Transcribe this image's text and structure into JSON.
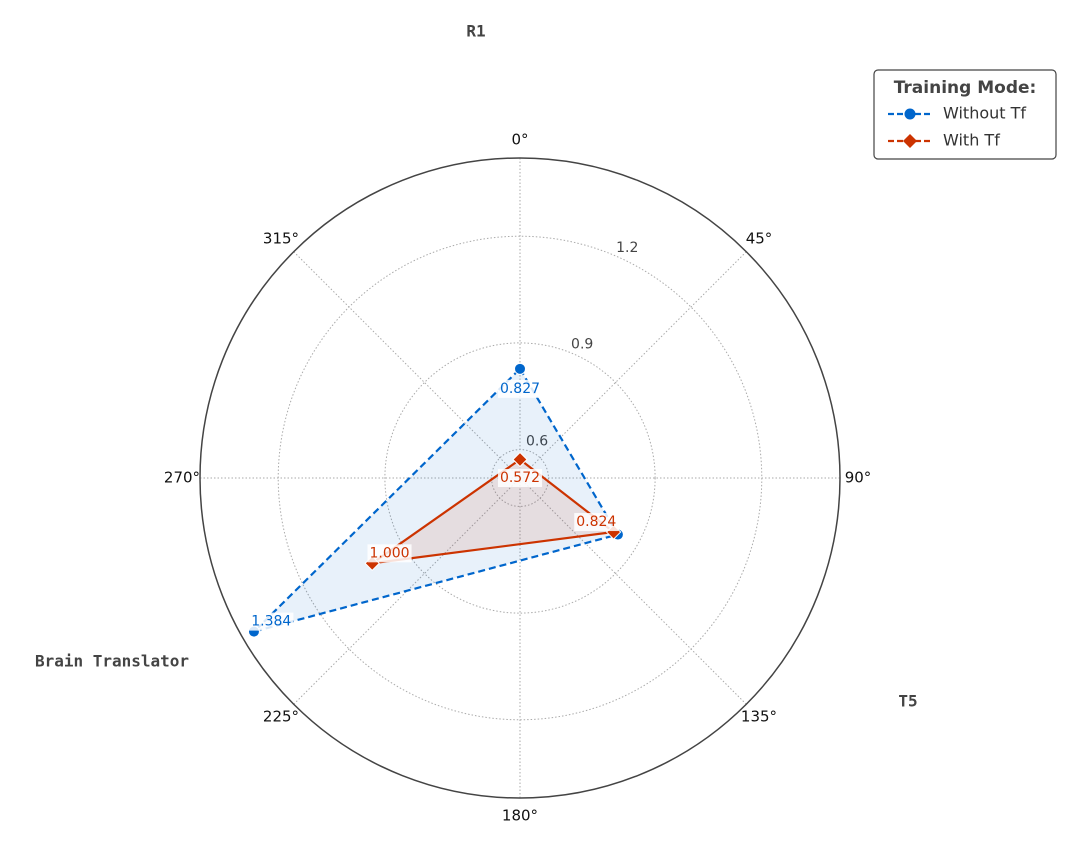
{
  "chart_data": {
    "type": "radar",
    "categories": [
      "R1",
      "T5",
      "Brain Translator"
    ],
    "category_angles": [
      0,
      120,
      240
    ],
    "rlim": [
      0.52,
      1.42
    ],
    "rticks": [
      0.6,
      0.9,
      1.2
    ],
    "angle_ticks": [
      {
        "value": 0,
        "label": "0°"
      },
      {
        "value": 45,
        "label": "45°"
      },
      {
        "value": 90,
        "label": "90°"
      },
      {
        "value": 135,
        "label": "135°"
      },
      {
        "value": 180,
        "label": "180°"
      },
      {
        "value": 225,
        "label": "225°"
      },
      {
        "value": 270,
        "label": "270°"
      },
      {
        "value": 315,
        "label": "315°"
      }
    ],
    "grid": true,
    "legend": {
      "title": "Training Mode:",
      "position": "upper right"
    },
    "series": [
      {
        "name": "Without Tf",
        "color": "#0066cc",
        "marker": "circle",
        "dashed": true,
        "values": [
          0.827,
          0.838,
          1.384
        ],
        "value_labels": [
          "0.827",
          null,
          "1.384"
        ]
      },
      {
        "name": "With Tf",
        "color": "#cc3300",
        "marker": "diamond",
        "dashed": false,
        "values": [
          0.572,
          0.824,
          1.0
        ],
        "value_labels": [
          "0.572",
          "0.824",
          "1.000"
        ]
      }
    ]
  }
}
